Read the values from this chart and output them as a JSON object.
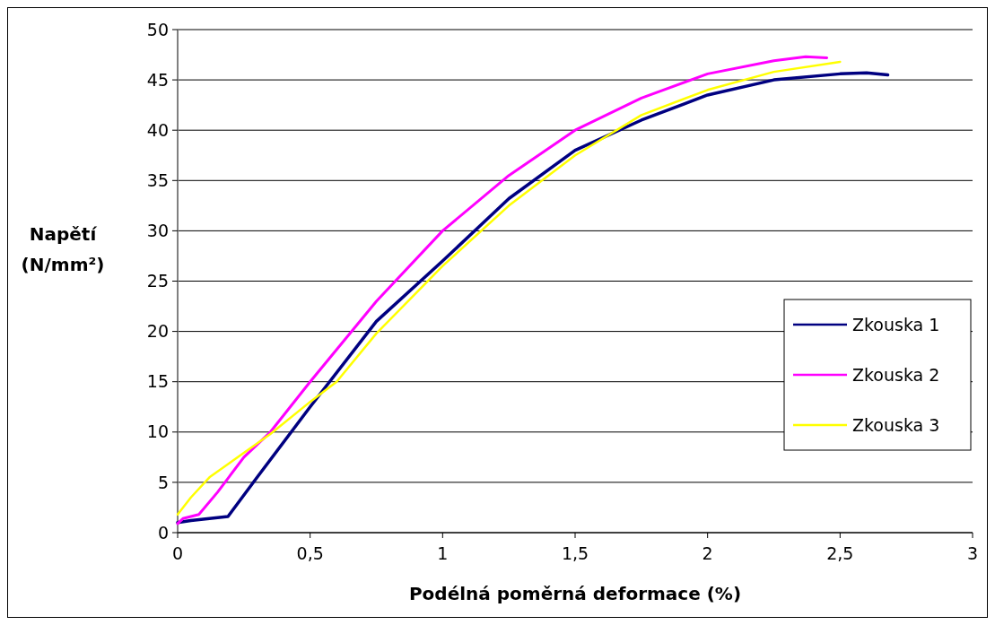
{
  "chart_data": {
    "type": "line",
    "xlabel": "Podélná poměrná deformace (%)",
    "ylabel": "Napětí (N/mm²)",
    "xlim": [
      0,
      3
    ],
    "xticks": [
      0,
      {
        "value": 0.5,
        "label": "0,5"
      },
      1,
      {
        "value": 1.5,
        "label": "1,5"
      },
      2,
      {
        "value": 2.5,
        "label": "2,5"
      },
      3
    ],
    "ylim": [
      0,
      50
    ],
    "yticks": [
      0,
      5,
      10,
      15,
      20,
      25,
      30,
      35,
      40,
      45,
      50
    ],
    "grid": "y",
    "legend": "right",
    "marker": "none",
    "line_style": "solid",
    "series": [
      {
        "name": "Zkouska 1",
        "color": "#000080",
        "x": [
          0,
          0.05,
          0.19,
          0.3,
          0.5,
          0.75,
          1.0,
          1.25,
          1.5,
          1.75,
          2.0,
          2.25,
          2.5,
          2.6,
          2.68
        ],
        "values": [
          1.0,
          1.2,
          1.6,
          5.5,
          12.5,
          21,
          27,
          33.2,
          38,
          41,
          43.5,
          45,
          45.6,
          45.7,
          45.5
        ]
      },
      {
        "name": "Zkouska 2",
        "color": "#ff00ff",
        "x": [
          0,
          0.02,
          0.08,
          0.15,
          0.25,
          0.35,
          0.5,
          0.75,
          1.0,
          1.25,
          1.5,
          1.75,
          2.0,
          2.25,
          2.37,
          2.45
        ],
        "values": [
          0.9,
          1.4,
          1.8,
          4,
          7.5,
          10,
          15,
          23,
          30,
          35.5,
          40,
          43.2,
          45.6,
          46.9,
          47.3,
          47.2
        ]
      },
      {
        "name": "Zkouska 3",
        "color": "#ffff00",
        "x": [
          0,
          0.05,
          0.12,
          0.2,
          0.35,
          0.5,
          0.6,
          0.75,
          1.0,
          1.25,
          1.5,
          1.75,
          2.0,
          2.25,
          2.5
        ],
        "values": [
          1.8,
          3.5,
          5.5,
          7,
          9.8,
          13,
          15,
          19.8,
          26.5,
          32.5,
          37.5,
          41.5,
          44,
          45.8,
          46.8
        ]
      }
    ]
  }
}
